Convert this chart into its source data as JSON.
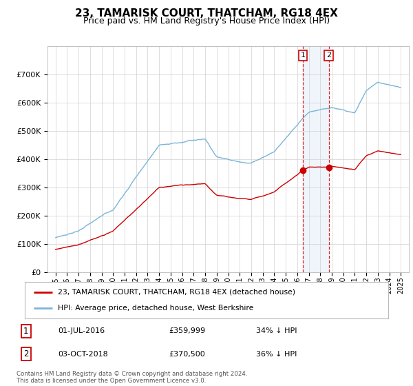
{
  "title": "23, TAMARISK COURT, THATCHAM, RG18 4EX",
  "subtitle": "Price paid vs. HM Land Registry's House Price Index (HPI)",
  "ylim": [
    0,
    800000
  ],
  "yticks": [
    0,
    100000,
    200000,
    300000,
    400000,
    500000,
    600000,
    700000
  ],
  "ytick_labels": [
    "£0",
    "£100K",
    "£200K",
    "£300K",
    "£400K",
    "£500K",
    "£600K",
    "£700K"
  ],
  "hpi_color": "#7ab4d8",
  "price_color": "#cc0000",
  "vline_color": "#cc0000",
  "span_color": "#aaccee",
  "marker_color": "#cc0000",
  "purchase1_date": 2016.5,
  "purchase1_price": 359999,
  "purchase2_date": 2018.75,
  "purchase2_price": 370500,
  "legend_entry1": "23, TAMARISK COURT, THATCHAM, RG18 4EX (detached house)",
  "legend_entry2": "HPI: Average price, detached house, West Berkshire",
  "table_row1": [
    "1",
    "01-JUL-2016",
    "£359,999",
    "34% ↓ HPI"
  ],
  "table_row2": [
    "2",
    "03-OCT-2018",
    "£370,500",
    "36% ↓ HPI"
  ],
  "footer": "Contains HM Land Registry data © Crown copyright and database right 2024.\nThis data is licensed under the Open Government Licence v3.0.",
  "background_color": "#ffffff",
  "title_fontsize": 11,
  "subtitle_fontsize": 9
}
